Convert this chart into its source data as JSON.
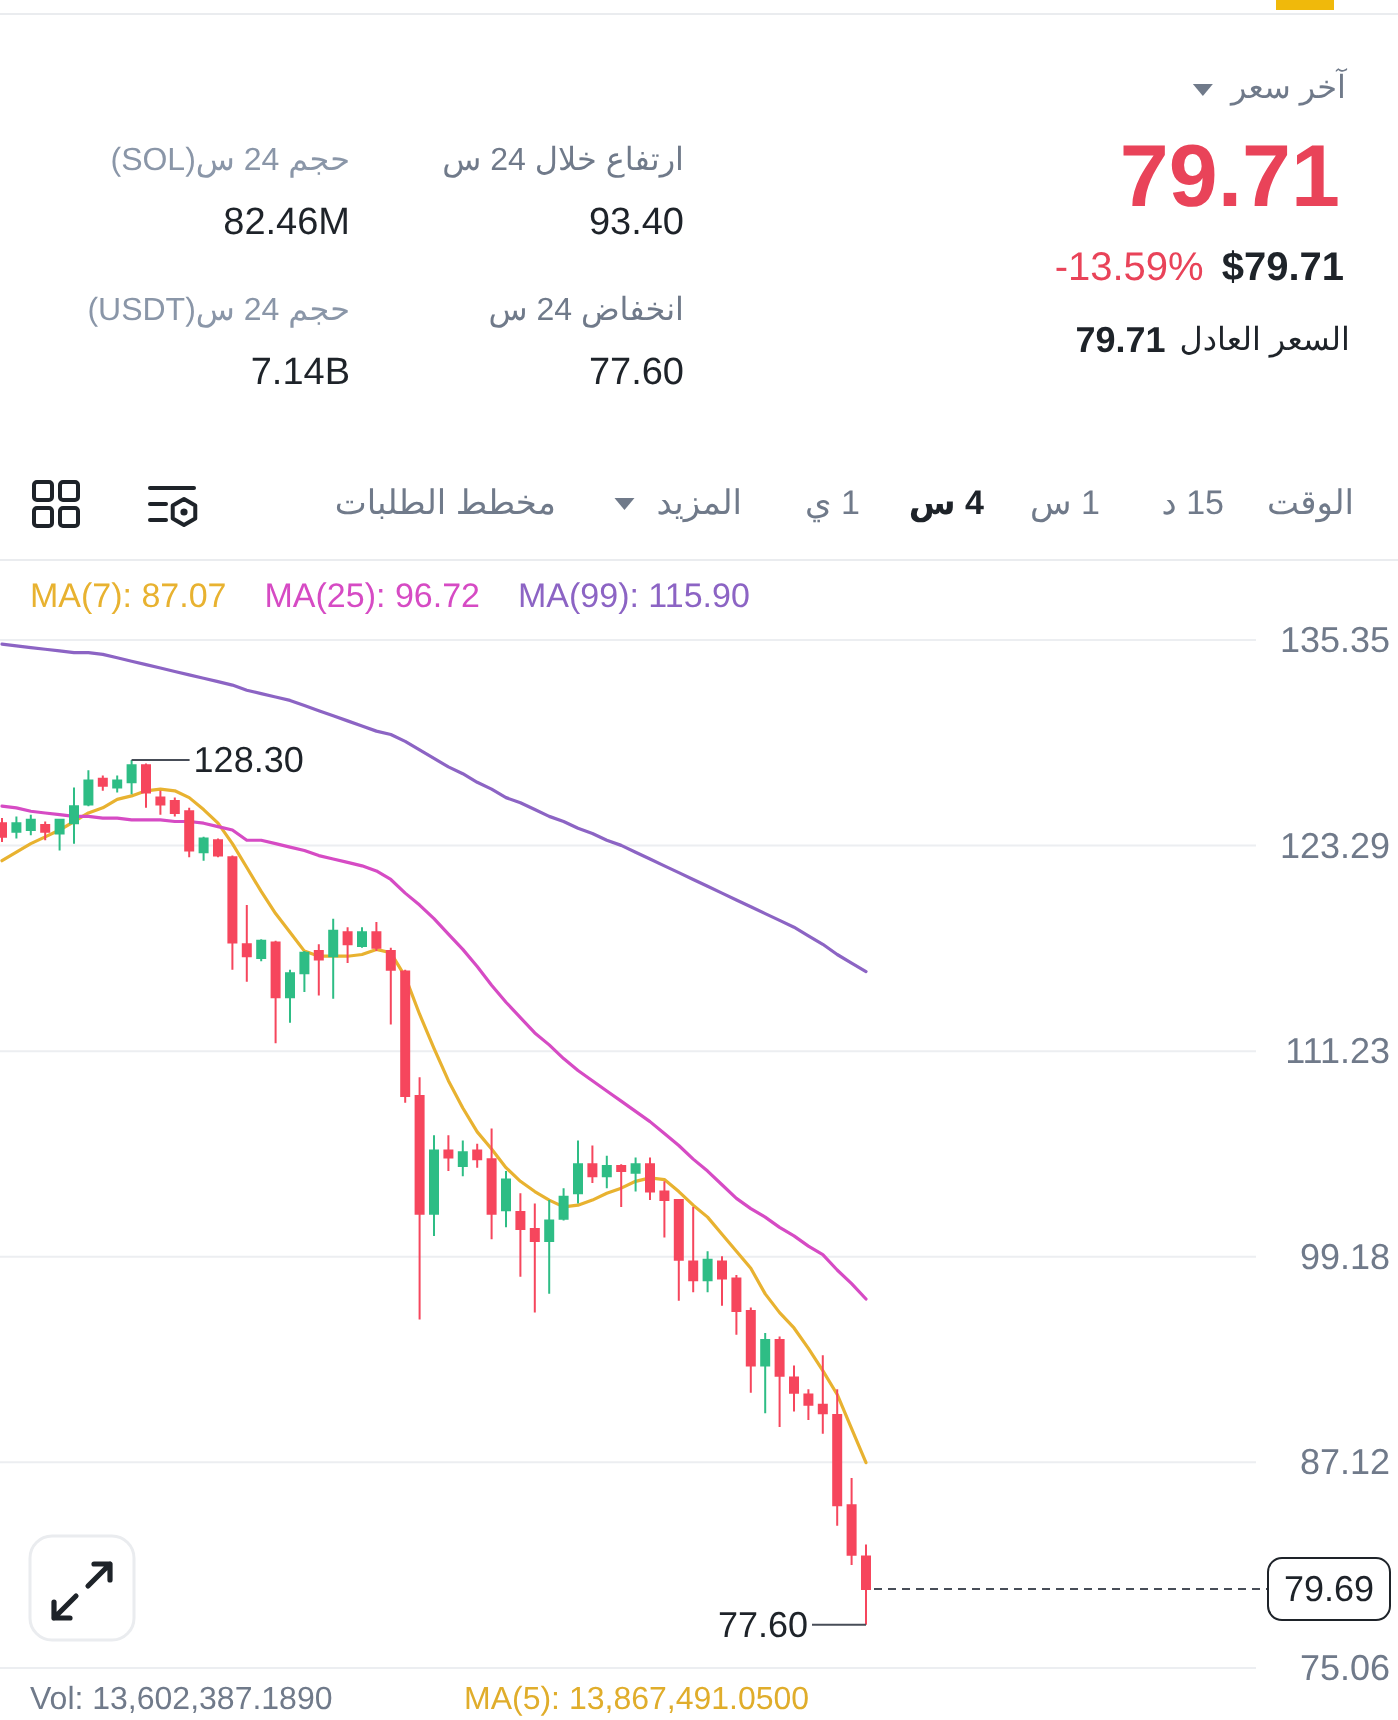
{
  "chart_data": {
    "type": "candlestick",
    "annotations": [
      "آخر سعر",
      "79.71",
      "-13.59%",
      "$79.71",
      "السعر العادل",
      "79.71",
      "ارتفاع خلال 24 س",
      "93.40",
      "انخفاض 24 س",
      "77.60",
      "حجم 24 س(SOL)",
      "82.46M",
      "حجم 24 س(USDT)",
      "7.14B",
      "الوقت",
      "15 د",
      "1 س",
      "4 س",
      "1 ي",
      "المزيد",
      "مخطط الطلبات",
      "128.30",
      "77.60",
      "Vol: 13,602,387.1890",
      "MA(5): 13,867,491.0500"
    ],
    "categories": [
      null,
      null,
      null,
      null,
      null,
      null,
      null,
      null,
      null,
      null,
      null,
      null,
      null,
      null,
      null,
      null,
      null,
      null,
      null,
      null,
      null,
      null,
      null,
      null,
      null,
      null,
      null,
      null,
      null,
      null,
      null,
      null,
      null,
      null,
      null,
      null,
      null,
      null,
      null,
      null,
      null,
      null,
      null,
      null,
      null,
      null,
      null,
      null,
      null,
      null,
      null,
      null,
      null,
      null,
      null,
      null,
      null,
      null,
      null,
      null,
      null
    ],
    "ohlc": [
      [
        124.6,
        124.9,
        123.5,
        123.8
      ],
      [
        124.1,
        125.0,
        123.7,
        124.6
      ],
      [
        124.2,
        125.1,
        123.9,
        124.8
      ],
      [
        124.5,
        124.7,
        123.6,
        124.1
      ],
      [
        124.0,
        124.8,
        123.0,
        124.8
      ],
      [
        124.6,
        126.7,
        123.4,
        125.6
      ],
      [
        125.7,
        127.7,
        125.6,
        127.1
      ],
      [
        127.2,
        127.4,
        126.5,
        126.8
      ],
      [
        126.7,
        127.4,
        126.4,
        127.1
      ],
      [
        127.0,
        128.3,
        126.3,
        128.0
      ],
      [
        128.0,
        128.1,
        125.5,
        126.4
      ],
      [
        126.1,
        126.5,
        125.1,
        125.7
      ],
      [
        125.9,
        126.1,
        125.0,
        125.2
      ],
      [
        125.3,
        125.5,
        122.6,
        123.0
      ],
      [
        122.9,
        123.8,
        122.4,
        123.7
      ],
      [
        123.6,
        123.7,
        122.6,
        122.7
      ],
      [
        122.6,
        122.7,
        116.0,
        117.6
      ],
      [
        117.5,
        119.8,
        115.3,
        116.8
      ],
      [
        116.7,
        117.8,
        116.5,
        117.7
      ],
      [
        117.6,
        117.7,
        111.7,
        114.4
      ],
      [
        114.4,
        116.0,
        112.9,
        115.8
      ],
      [
        115.8,
        117.1,
        114.7,
        117.0
      ],
      [
        117.1,
        117.5,
        114.5,
        116.6
      ],
      [
        116.8,
        119.0,
        114.3,
        118.3
      ],
      [
        118.2,
        118.5,
        116.4,
        117.5
      ],
      [
        117.4,
        118.5,
        117.3,
        118.2
      ],
      [
        118.2,
        118.8,
        117.1,
        117.3
      ],
      [
        117.1,
        117.3,
        112.8,
        116.0
      ],
      [
        115.9,
        116.0,
        108.2,
        108.6
      ],
      [
        108.6,
        109.7,
        95.5,
        101.7
      ],
      [
        101.7,
        106.3,
        100.4,
        105.4
      ],
      [
        105.4,
        106.3,
        104.2,
        105.0
      ],
      [
        104.5,
        106.0,
        103.9,
        105.3
      ],
      [
        105.4,
        105.8,
        104.4,
        104.9
      ],
      [
        104.9,
        106.7,
        100.2,
        101.7
      ],
      [
        101.9,
        104.2,
        100.9,
        103.7
      ],
      [
        101.8,
        102.9,
        98.0,
        100.8
      ],
      [
        100.8,
        102.3,
        95.9,
        100.1
      ],
      [
        100.1,
        102.5,
        97.0,
        101.3
      ],
      [
        101.4,
        103.2,
        101.3,
        102.7
      ],
      [
        102.9,
        106.0,
        102.3,
        104.6
      ],
      [
        104.6,
        105.7,
        103.5,
        103.9
      ],
      [
        103.9,
        105.1,
        103.2,
        104.5
      ],
      [
        104.5,
        104.6,
        102.1,
        104.2
      ],
      [
        104.1,
        105.0,
        103.0,
        104.6
      ],
      [
        104.6,
        105.0,
        102.5,
        103.0
      ],
      [
        103.0,
        103.6,
        100.3,
        102.5
      ],
      [
        102.5,
        102.5,
        96.6,
        99.0
      ],
      [
        98.9,
        102.1,
        97.1,
        97.8
      ],
      [
        97.8,
        99.5,
        97.1,
        99.0
      ],
      [
        98.9,
        99.2,
        96.3,
        97.9
      ],
      [
        97.9,
        98.1,
        94.6,
        96.0
      ],
      [
        96.0,
        96.2,
        91.2,
        92.8
      ],
      [
        92.8,
        94.7,
        90.0,
        94.3
      ],
      [
        94.3,
        94.5,
        89.2,
        92.2
      ],
      [
        92.1,
        92.8,
        90.1,
        91.2
      ],
      [
        91.1,
        91.4,
        89.6,
        90.5
      ],
      [
        90.5,
        93.4,
        88.8,
        90.0
      ],
      [
        89.9,
        91.4,
        83.4,
        84.6
      ],
      [
        84.6,
        86.2,
        81.1,
        81.7
      ],
      [
        81.6,
        82.3,
        77.6,
        79.7
      ]
    ],
    "colors": [
      "#f6465d",
      "#2ebd85",
      "#2ebd85",
      "#f6465d",
      "#2ebd85",
      "#2ebd85",
      "#2ebd85",
      "#f6465d",
      "#2ebd85",
      "#2ebd85",
      "#f6465d",
      "#f6465d",
      "#f6465d",
      "#f6465d",
      "#2ebd85",
      "#f6465d",
      "#f6465d",
      "#f6465d",
      "#2ebd85",
      "#f6465d",
      "#2ebd85",
      "#2ebd85",
      "#f6465d",
      "#2ebd85",
      "#f6465d",
      "#2ebd85",
      "#f6465d",
      "#f6465d",
      "#f6465d",
      "#f6465d",
      "#2ebd85",
      "#f6465d",
      "#2ebd85",
      "#f6465d",
      "#f6465d",
      "#2ebd85",
      "#f6465d",
      "#f6465d",
      "#2ebd85",
      "#2ebd85",
      "#2ebd85",
      "#f6465d",
      "#2ebd85",
      "#f6465d",
      "#2ebd85",
      "#f6465d",
      "#f6465d",
      "#f6465d",
      "#f6465d",
      "#2ebd85",
      "#f6465d",
      "#f6465d",
      "#f6465d",
      "#2ebd85",
      "#f6465d",
      "#f6465d",
      "#f6465d",
      "#f6465d",
      "#f6465d",
      "#f6465d",
      "#f6465d"
    ],
    "series": [
      {
        "name": "MA(7): 87.07",
        "type": "line",
        "color": "#e8b230",
        "values": [
          122.4,
          122.9,
          123.4,
          123.8,
          124.2,
          124.7,
          125.2,
          125.5,
          126.0,
          126.2,
          126.5,
          126.6,
          126.5,
          126.1,
          125.4,
          124.6,
          123.4,
          122.0,
          120.6,
          119.3,
          118.2,
          117.1,
          116.8,
          116.8,
          116.8,
          116.9,
          117.2,
          117.0,
          115.6,
          113.4,
          111.4,
          109.5,
          107.9,
          106.5,
          105.5,
          104.4,
          103.6,
          103.0,
          102.5,
          102.1,
          102.2,
          102.5,
          102.9,
          103.2,
          103.6,
          103.8,
          103.7,
          103.0,
          102.2,
          101.5,
          100.5,
          99.5,
          98.5,
          97.0,
          95.9,
          95.0,
          93.8,
          92.5,
          91.1,
          89.1,
          87.1
        ]
      },
      {
        "name": "MA(25): 96.72",
        "type": "line",
        "color": "#d64bc4",
        "values": [
          125.6,
          125.5,
          125.3,
          125.2,
          125.1,
          125.0,
          125.0,
          124.9,
          124.9,
          124.8,
          124.8,
          124.8,
          124.7,
          124.7,
          124.6,
          124.4,
          124.2,
          123.6,
          123.6,
          123.4,
          123.2,
          123.0,
          122.7,
          122.5,
          122.3,
          122.1,
          121.8,
          121.3,
          120.5,
          119.8,
          119.0,
          118.1,
          117.2,
          116.2,
          115.1,
          114.1,
          113.2,
          112.3,
          111.6,
          110.8,
          110.1,
          109.5,
          108.9,
          108.3,
          107.7,
          107.1,
          106.4,
          105.7,
          104.9,
          104.2,
          103.4,
          102.6,
          102.0,
          101.5,
          100.9,
          100.4,
          99.8,
          99.3,
          98.4,
          97.6,
          96.7
        ]
      },
      {
        "name": "MA(99): 115.90",
        "type": "line",
        "color": "#8c64c4",
        "values": [
          135.1,
          135.0,
          134.9,
          134.8,
          134.7,
          134.6,
          134.6,
          134.5,
          134.3,
          134.1,
          133.9,
          133.7,
          133.5,
          133.3,
          133.1,
          132.9,
          132.7,
          132.4,
          132.2,
          132.0,
          131.8,
          131.5,
          131.2,
          130.9,
          130.6,
          130.3,
          130.0,
          129.8,
          129.4,
          128.9,
          128.4,
          127.9,
          127.5,
          127.0,
          126.6,
          126.1,
          125.8,
          125.4,
          125.0,
          124.7,
          124.3,
          124.0,
          123.6,
          123.3,
          122.9,
          122.5,
          122.1,
          121.7,
          121.3,
          120.9,
          120.5,
          120.1,
          119.7,
          119.3,
          118.9,
          118.5,
          118.0,
          117.5,
          116.9,
          116.4,
          115.9
        ]
      }
    ],
    "ylim": [
      75.06,
      139.8
    ],
    "yticks": [
      135.35,
      123.29,
      111.23,
      99.18,
      87.12,
      75.06
    ],
    "grid": "y",
    "legend": "top",
    "ref_lines": [
      {
        "axis": "y",
        "value": 79.69,
        "label": "79.69",
        "line_style": "dashed",
        "color": "#474d57"
      }
    ]
  }
}
